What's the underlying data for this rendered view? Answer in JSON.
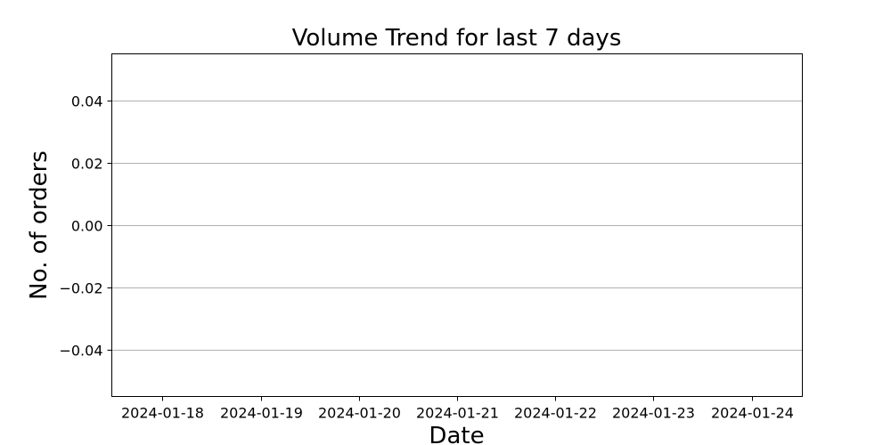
{
  "chart_data": {
    "type": "line",
    "title": "Volume Trend for last 7 days",
    "xlabel": "Date",
    "ylabel": "No. of orders",
    "x": [
      "2024-01-18",
      "2024-01-19",
      "2024-01-20",
      "2024-01-21",
      "2024-01-22",
      "2024-01-23",
      "2024-01-24"
    ],
    "xlim": [
      "2024-01-17T11:38:00",
      "2024-01-24T12:22:00"
    ],
    "y_ticks": [
      -0.04,
      -0.02,
      0.0,
      0.02,
      0.04
    ],
    "y_tick_labels": [
      "−0.04",
      "−0.02",
      "0.00",
      "0.02",
      "0.04"
    ],
    "ylim": [
      -0.055,
      0.055
    ],
    "series": [],
    "grid": "y-major",
    "legend": "none",
    "colors": {
      "grid": "#b0b0b0",
      "axis": "#000000",
      "background": "#ffffff"
    }
  }
}
